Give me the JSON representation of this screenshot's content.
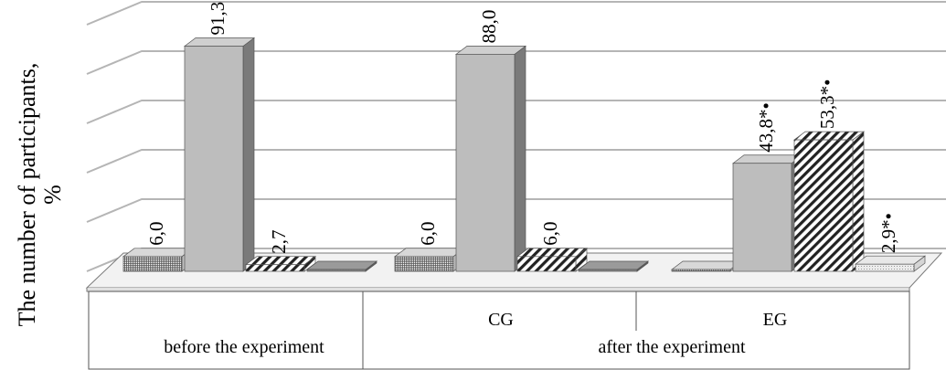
{
  "chart_data": {
    "type": "bar",
    "ylabel": "The number of participants,",
    "yunit": "%",
    "groups": [
      {
        "label": "before the experiment",
        "subgroups": [
          {
            "label": "",
            "values": [
              6.0,
              91.3,
              2.7,
              0.0
            ],
            "labels": [
              "6,0",
              "91,3",
              "2,7",
              ""
            ]
          }
        ]
      },
      {
        "label": "after the experiment",
        "subgroups": [
          {
            "label": "CG",
            "values": [
              6.0,
              88.0,
              6.0,
              0.0
            ],
            "labels": [
              "6,0",
              "88,0",
              "6,0",
              ""
            ]
          },
          {
            "label": "EG",
            "values": [
              0.0,
              43.8,
              53.3,
              2.9
            ],
            "labels": [
              "",
              "43,8*•",
              "53,3*•",
              "2,9*•"
            ]
          }
        ]
      }
    ],
    "series_count": 4,
    "ylim": [
      0,
      100
    ],
    "grid": true,
    "legend": "none",
    "colors": [
      "#c8c8c8",
      "#bdbdbd",
      "#ffffff",
      "#909090"
    ]
  }
}
